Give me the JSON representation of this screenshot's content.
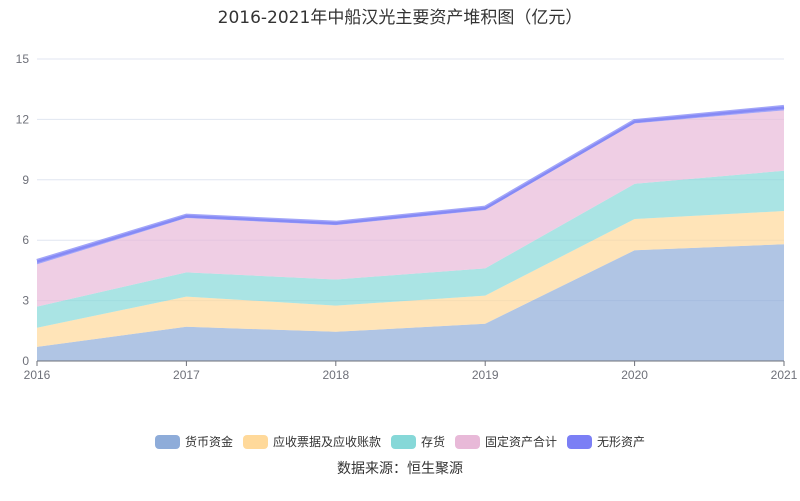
{
  "chart_data": {
    "type": "area",
    "stacked": true,
    "title": "2016-2021年中船汉光主要资产堆积图（亿元）",
    "categories": [
      "2016",
      "2017",
      "2018",
      "2019",
      "2020",
      "2021"
    ],
    "ylim": [
      0,
      15
    ],
    "yticks": [
      0,
      3,
      6,
      9,
      12,
      15
    ],
    "grid": true,
    "legend_position": "bottom",
    "series": [
      {
        "name": "货币资金",
        "color": "#8eacd9",
        "values": [
          0.7,
          1.7,
          1.45,
          1.85,
          5.5,
          5.8
        ]
      },
      {
        "name": "应收票据及应收账款",
        "color": "#ffd99a",
        "values": [
          0.95,
          1.5,
          1.3,
          1.4,
          1.55,
          1.65
        ]
      },
      {
        "name": "存货",
        "color": "#86d8d8",
        "values": [
          1.05,
          1.2,
          1.3,
          1.35,
          1.75,
          2.0
        ]
      },
      {
        "name": "固定资产合计",
        "color": "#e8b9d8",
        "values": [
          2.1,
          2.7,
          2.7,
          2.9,
          3.0,
          3.0
        ]
      },
      {
        "name": "无形资产",
        "color": "#7b7ff5",
        "values": [
          0.2,
          0.15,
          0.15,
          0.15,
          0.15,
          0.2
        ]
      }
    ],
    "source": "数据来源：恒生聚源"
  }
}
